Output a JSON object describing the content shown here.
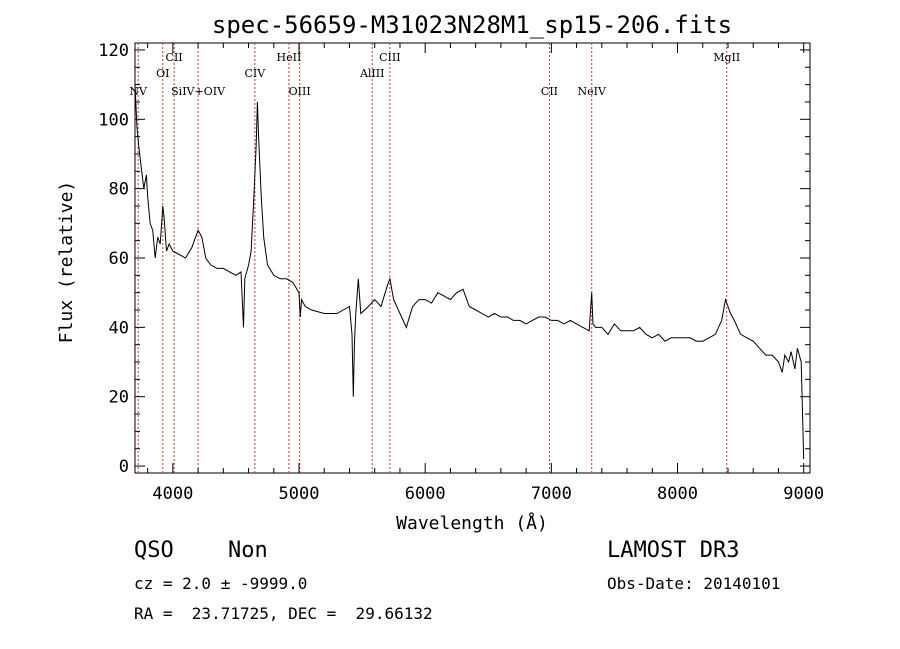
{
  "chart_data": {
    "type": "line",
    "title": "spec-56659-M31023N28M1_sp15-206.fits",
    "xlabel": "Wavelength (Å)",
    "ylabel": "Flux (relative)",
    "xlim": [
      3700,
      9050
    ],
    "ylim": [
      -2,
      122
    ],
    "x_ticks": [
      4000,
      5000,
      6000,
      7000,
      8000,
      9000
    ],
    "y_ticks": [
      0,
      20,
      40,
      60,
      80,
      100,
      120
    ],
    "grid": false,
    "series": [
      {
        "color": "#000000",
        "points": [
          [
            3700,
            110
          ],
          [
            3715,
            98
          ],
          [
            3730,
            92
          ],
          [
            3750,
            86
          ],
          [
            3770,
            80
          ],
          [
            3790,
            84
          ],
          [
            3800,
            78
          ],
          [
            3820,
            70
          ],
          [
            3840,
            68
          ],
          [
            3860,
            60
          ],
          [
            3880,
            66
          ],
          [
            3900,
            64
          ],
          [
            3920,
            75
          ],
          [
            3930,
            72
          ],
          [
            3950,
            62
          ],
          [
            3970,
            64
          ],
          [
            4000,
            62
          ],
          [
            4050,
            61
          ],
          [
            4100,
            60
          ],
          [
            4150,
            63
          ],
          [
            4180,
            66
          ],
          [
            4200,
            68
          ],
          [
            4230,
            66
          ],
          [
            4260,
            60
          ],
          [
            4300,
            58
          ],
          [
            4350,
            57
          ],
          [
            4400,
            57
          ],
          [
            4450,
            56
          ],
          [
            4500,
            55
          ],
          [
            4540,
            56
          ],
          [
            4560,
            40
          ],
          [
            4570,
            54
          ],
          [
            4600,
            58
          ],
          [
            4620,
            62
          ],
          [
            4640,
            76
          ],
          [
            4660,
            92
          ],
          [
            4670,
            105
          ],
          [
            4680,
            95
          ],
          [
            4700,
            78
          ],
          [
            4720,
            66
          ],
          [
            4750,
            58
          ],
          [
            4800,
            55
          ],
          [
            4850,
            54
          ],
          [
            4900,
            54
          ],
          [
            4950,
            53
          ],
          [
            5000,
            50
          ],
          [
            5010,
            43
          ],
          [
            5020,
            48
          ],
          [
            5050,
            46
          ],
          [
            5100,
            45
          ],
          [
            5200,
            44
          ],
          [
            5300,
            44
          ],
          [
            5400,
            46
          ],
          [
            5420,
            38
          ],
          [
            5430,
            20
          ],
          [
            5440,
            36
          ],
          [
            5450,
            44
          ],
          [
            5470,
            54
          ],
          [
            5490,
            44
          ],
          [
            5550,
            46
          ],
          [
            5600,
            48
          ],
          [
            5650,
            46
          ],
          [
            5700,
            52
          ],
          [
            5720,
            54
          ],
          [
            5750,
            48
          ],
          [
            5800,
            44
          ],
          [
            5850,
            40
          ],
          [
            5900,
            46
          ],
          [
            5950,
            48
          ],
          [
            6000,
            48
          ],
          [
            6050,
            47
          ],
          [
            6100,
            50
          ],
          [
            6150,
            49
          ],
          [
            6200,
            48
          ],
          [
            6250,
            50
          ],
          [
            6300,
            51
          ],
          [
            6350,
            46
          ],
          [
            6400,
            45
          ],
          [
            6450,
            44
          ],
          [
            6500,
            43
          ],
          [
            6550,
            44
          ],
          [
            6600,
            43
          ],
          [
            6650,
            43
          ],
          [
            6700,
            42
          ],
          [
            6750,
            42
          ],
          [
            6800,
            41
          ],
          [
            6850,
            42
          ],
          [
            6900,
            43
          ],
          [
            6950,
            43
          ],
          [
            7000,
            42
          ],
          [
            7050,
            42
          ],
          [
            7100,
            41
          ],
          [
            7150,
            42
          ],
          [
            7200,
            41
          ],
          [
            7250,
            40
          ],
          [
            7300,
            39
          ],
          [
            7320,
            50
          ],
          [
            7330,
            41
          ],
          [
            7350,
            40
          ],
          [
            7400,
            40
          ],
          [
            7450,
            38
          ],
          [
            7500,
            41
          ],
          [
            7550,
            39
          ],
          [
            7600,
            39
          ],
          [
            7650,
            39
          ],
          [
            7700,
            40
          ],
          [
            7750,
            38
          ],
          [
            7800,
            37
          ],
          [
            7850,
            38
          ],
          [
            7900,
            36
          ],
          [
            7950,
            37
          ],
          [
            8000,
            37
          ],
          [
            8050,
            37
          ],
          [
            8100,
            37
          ],
          [
            8150,
            36
          ],
          [
            8200,
            36
          ],
          [
            8250,
            37
          ],
          [
            8300,
            38
          ],
          [
            8350,
            42
          ],
          [
            8380,
            48
          ],
          [
            8400,
            46
          ],
          [
            8420,
            44
          ],
          [
            8450,
            42
          ],
          [
            8500,
            38
          ],
          [
            8550,
            37
          ],
          [
            8600,
            36
          ],
          [
            8650,
            34
          ],
          [
            8700,
            32
          ],
          [
            8750,
            32
          ],
          [
            8800,
            30
          ],
          [
            8830,
            27
          ],
          [
            8850,
            32
          ],
          [
            8880,
            30
          ],
          [
            8900,
            33
          ],
          [
            8930,
            28
          ],
          [
            8950,
            34
          ],
          [
            8980,
            30
          ],
          [
            9000,
            2
          ]
        ]
      }
    ],
    "lines": [
      {
        "label": "NV",
        "x": 3725,
        "row": 3
      },
      {
        "label": "OI",
        "x": 3920,
        "row": 1
      },
      {
        "label": "CII",
        "x": 4010,
        "row": 0
      },
      {
        "label": "SiIV+OIV",
        "x": 4200,
        "row": 2
      },
      {
        "label": "CIV",
        "x": 4650,
        "row": 1
      },
      {
        "label": "HeII",
        "x": 4920,
        "row": 0
      },
      {
        "label": "OIII",
        "x": 5005,
        "row": 3
      },
      {
        "label": "AlIII",
        "x": 5580,
        "row": 1
      },
      {
        "label": "CIII",
        "x": 5720,
        "row": 0
      },
      {
        "label": "CII",
        "x": 6985,
        "row": 3
      },
      {
        "label": "NeIV",
        "x": 7320,
        "row": 2
      },
      {
        "label": "MgII",
        "x": 8390,
        "row": 0
      }
    ]
  },
  "info": {
    "class": "QSO",
    "subclass": "Non",
    "survey": "LAMOST DR3",
    "cz": "cz = 2.0 ± -9999.0",
    "obs_date": "Obs-Date: 20140101",
    "coords": "RA =  23.71725, DEC =  29.66132"
  }
}
